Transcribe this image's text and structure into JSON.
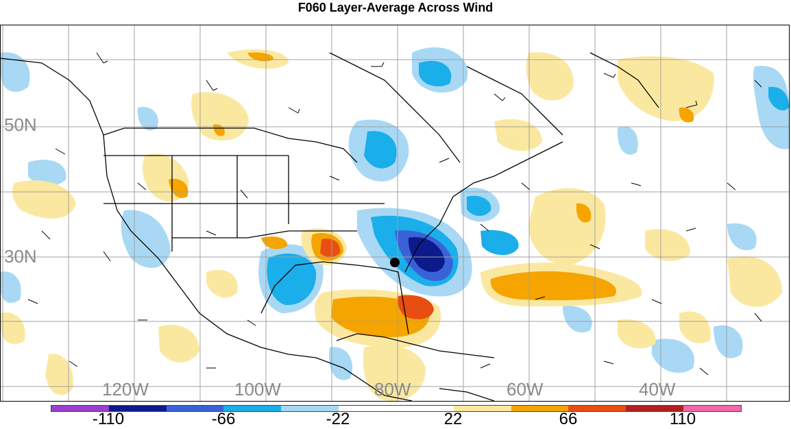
{
  "title": "F060 Layer-Average Across Wind",
  "lat_labels": [
    "50N",
    "30N"
  ],
  "lon_labels": [
    "120W",
    "100W",
    "80W",
    "60W",
    "40W"
  ],
  "colorbar": {
    "labels": [
      "-110",
      "-66",
      "-22",
      "22",
      "66",
      "110"
    ],
    "colors": [
      "#9b3fd0",
      "#0d1a8c",
      "#3a62d8",
      "#1aaeea",
      "#a8d8f4",
      "#ffffff",
      "#ffffff",
      "#fbe8a0",
      "#f6a400",
      "#e84e12",
      "#b02020",
      "#f06aa8"
    ]
  },
  "map": {
    "land_lines": "#000000",
    "grid_color": "#a0a0a0"
  }
}
